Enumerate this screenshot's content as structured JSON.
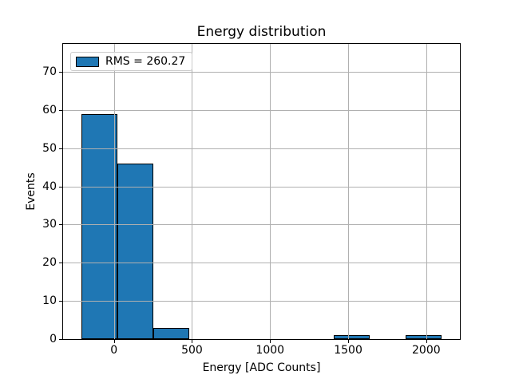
{
  "figure": {
    "background_color": "#ffffff"
  },
  "chart_data": {
    "type": "bar",
    "subtype": "histogram",
    "title": "Energy distribution",
    "xlabel": "Energy [ADC Counts]",
    "ylabel": "Events",
    "legend": {
      "label": "RMS = 260.27",
      "position": "upper left",
      "swatch_color": "#1f77b4"
    },
    "bin_edges": [
      -210,
      21,
      252,
      483,
      714,
      945,
      1176,
      1407,
      1638,
      1869,
      2100
    ],
    "values": [
      59,
      46,
      3,
      0,
      0,
      0,
      0,
      1,
      0,
      1
    ],
    "xticks": [
      0,
      500,
      1000,
      1500,
      2000
    ],
    "yticks": [
      0,
      10,
      20,
      30,
      40,
      50,
      60,
      70
    ],
    "xlim": [
      -325.5,
      2215.5
    ],
    "ylim": [
      0,
      77.3
    ],
    "grid": true,
    "grid_over_bars": true,
    "bar_color": "#1f77b4",
    "bar_edge_color": "#000000",
    "grid_color": "#b0b0b0",
    "axis_color": "#000000"
  }
}
